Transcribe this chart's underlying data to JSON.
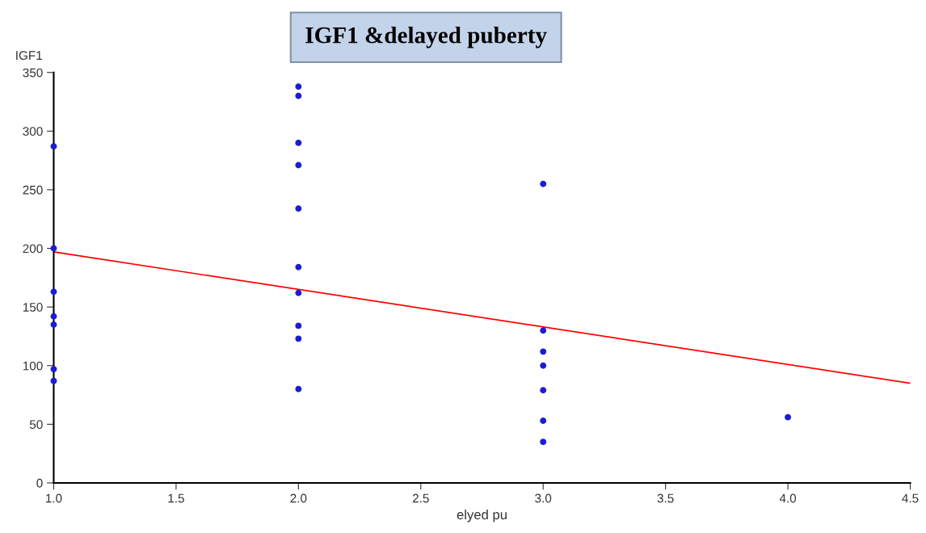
{
  "chart_data": {
    "type": "scatter",
    "title": "IGF1 &delayed puberty",
    "xlabel": "elyed pu",
    "ylabel": "IGF1",
    "grid": false,
    "xlim": [
      1.0,
      4.5
    ],
    "xticks": [
      {
        "value": 1,
        "label": "1.0"
      },
      1.5,
      {
        "value": 2,
        "label": "2.0"
      },
      2.5,
      {
        "value": 3,
        "label": "3.0"
      },
      3.5,
      {
        "value": 4,
        "label": "4.0"
      },
      4.5
    ],
    "ylim": [
      0,
      350
    ],
    "yticks": [
      0,
      50,
      100,
      150,
      200,
      250,
      300,
      350
    ],
    "series": [
      {
        "color": "#1c1cd4",
        "marker": "circle",
        "x": [
          1,
          1,
          1,
          1,
          1,
          1,
          1,
          2,
          2,
          2,
          2,
          2,
          2,
          2,
          2,
          2,
          2,
          3,
          3,
          3,
          3,
          3,
          3,
          3,
          4
        ],
        "values": [
          287,
          200,
          163,
          142,
          135,
          97,
          87,
          338,
          330,
          290,
          271,
          234,
          184,
          162,
          134,
          123,
          80,
          255,
          130,
          112,
          100,
          79,
          53,
          35,
          56
        ]
      },
      {
        "type": "line",
        "color": "#ff0000",
        "x": [
          1.0,
          4.5
        ],
        "values": [
          197,
          85
        ]
      }
    ]
  }
}
